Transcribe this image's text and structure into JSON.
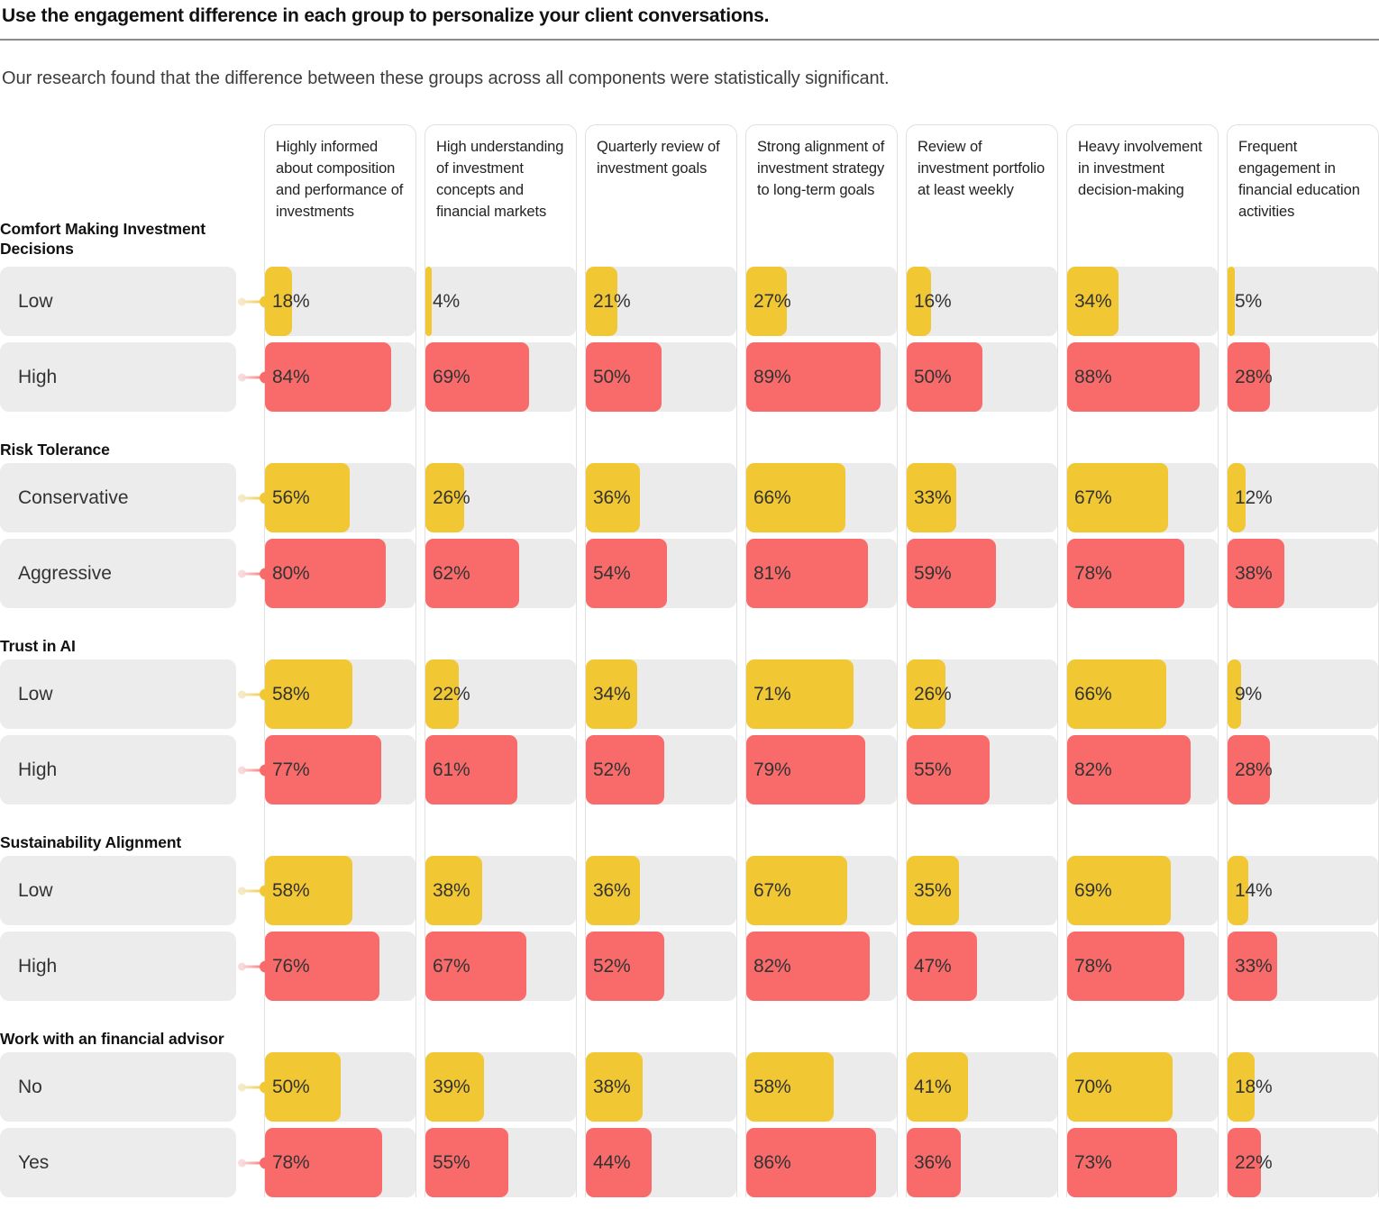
{
  "header": {
    "title": "Use the engagement difference in each group to personalize your client conversations.",
    "subtitle": "Our research found that the difference between these groups across all components were statistically significant."
  },
  "colors": {
    "low": "#f1c733",
    "high": "#f96b6b",
    "low_light": "#f5e9c8",
    "high_light": "#f8dbdb",
    "track": "#ebebeb",
    "row_label_box": "#ececec",
    "column_border": "#e1e1e1",
    "divider": "#8a8a8a"
  },
  "chart_data": {
    "type": "bar",
    "unit": "%",
    "xlim": [
      0,
      100
    ],
    "grid": false,
    "legend": "none",
    "columns": [
      "Highly informed about composition and performance of investments",
      "High understanding of investment concepts and financial markets",
      "Quarterly review of investment goals",
      "Strong alignment of investment strategy to long-term goals",
      "Review of investment portfolio at least weekly",
      "Heavy involvement in investment decision-making",
      "Frequent engagement in financial education activities"
    ],
    "groups": [
      {
        "label": "Comfort Making Investment Decisions",
        "rows": [
          {
            "label": "Low",
            "tone": "low",
            "values": [
              18,
              4,
              21,
              27,
              16,
              34,
              5
            ]
          },
          {
            "label": "High",
            "tone": "high",
            "values": [
              84,
              69,
              50,
              89,
              50,
              88,
              28
            ]
          }
        ]
      },
      {
        "label": "Risk Tolerance",
        "rows": [
          {
            "label": "Conservative",
            "tone": "low",
            "values": [
              56,
              26,
              36,
              66,
              33,
              67,
              12
            ]
          },
          {
            "label": "Aggressive",
            "tone": "high",
            "values": [
              80,
              62,
              54,
              81,
              59,
              78,
              38
            ]
          }
        ]
      },
      {
        "label": "Trust in AI",
        "rows": [
          {
            "label": "Low",
            "tone": "low",
            "values": [
              58,
              22,
              34,
              71,
              26,
              66,
              9
            ]
          },
          {
            "label": "High",
            "tone": "high",
            "values": [
              77,
              61,
              52,
              79,
              55,
              82,
              28
            ]
          }
        ]
      },
      {
        "label": "Sustainability Alignment",
        "rows": [
          {
            "label": "Low",
            "tone": "low",
            "values": [
              58,
              38,
              36,
              67,
              35,
              69,
              14
            ]
          },
          {
            "label": "High",
            "tone": "high",
            "values": [
              76,
              67,
              52,
              82,
              47,
              78,
              33
            ]
          }
        ]
      },
      {
        "label": "Work with an financial advisor",
        "rows": [
          {
            "label": "No",
            "tone": "low",
            "values": [
              50,
              39,
              38,
              58,
              41,
              70,
              18
            ]
          },
          {
            "label": "Yes",
            "tone": "high",
            "values": [
              78,
              55,
              44,
              86,
              36,
              73,
              22
            ]
          }
        ]
      }
    ]
  }
}
